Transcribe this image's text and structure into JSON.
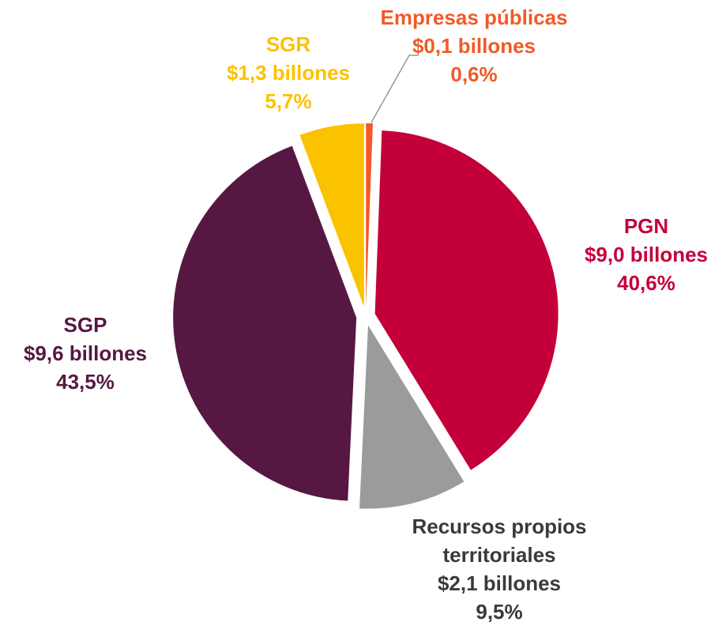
{
  "chart_data": {
    "type": "pie",
    "names": [
      "Empresas públicas",
      "PGN",
      "Recursos propios territoriales",
      "SGP",
      "SGR"
    ],
    "values": [
      0.6,
      40.6,
      9.5,
      43.5,
      5.7
    ],
    "value_labels": [
      "0,6%",
      "40,6%",
      "9,5%",
      "43,5%",
      "5,7%"
    ],
    "amount_labels": [
      "$0,1 billones",
      "$9,0 billones",
      "$2,1 billones",
      "$9,6 billones",
      "$1,3 billones"
    ],
    "colors": [
      "#f05a28",
      "#c4003a",
      "#9b9b9b",
      "#561842",
      "#fbc200"
    ],
    "label_colors": [
      "#f05a28",
      "#c4003a",
      "#3a3a3a",
      "#561842",
      "#fbc200"
    ]
  }
}
